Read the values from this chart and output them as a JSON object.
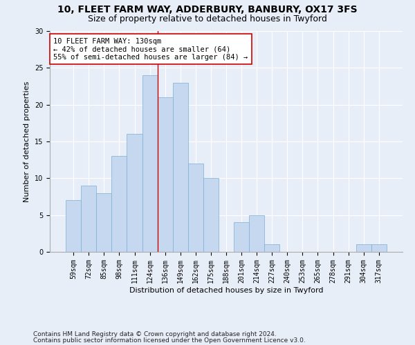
{
  "title1": "10, FLEET FARM WAY, ADDERBURY, BANBURY, OX17 3FS",
  "title2": "Size of property relative to detached houses in Twyford",
  "xlabel": "Distribution of detached houses by size in Twyford",
  "ylabel": "Number of detached properties",
  "bar_color": "#c5d8f0",
  "bar_edge_color": "#7aafd4",
  "categories": [
    "59sqm",
    "72sqm",
    "85sqm",
    "98sqm",
    "111sqm",
    "124sqm",
    "136sqm",
    "149sqm",
    "162sqm",
    "175sqm",
    "188sqm",
    "201sqm",
    "214sqm",
    "227sqm",
    "240sqm",
    "253sqm",
    "265sqm",
    "278sqm",
    "291sqm",
    "304sqm",
    "317sqm"
  ],
  "values": [
    7,
    9,
    8,
    13,
    16,
    24,
    21,
    23,
    12,
    10,
    0,
    4,
    5,
    1,
    0,
    0,
    0,
    0,
    0,
    1,
    1
  ],
  "vline_x": 5.5,
  "vline_color": "#cc0000",
  "annotation_text": "10 FLEET FARM WAY: 130sqm\n← 42% of detached houses are smaller (64)\n55% of semi-detached houses are larger (84) →",
  "annotation_box_color": "#ffffff",
  "annotation_box_edge": "#cc0000",
  "ylim": [
    0,
    30
  ],
  "yticks": [
    0,
    5,
    10,
    15,
    20,
    25,
    30
  ],
  "footnote1": "Contains HM Land Registry data © Crown copyright and database right 2024.",
  "footnote2": "Contains public sector information licensed under the Open Government Licence v3.0.",
  "background_color": "#e8eef8",
  "plot_bg_color": "#e8eef8",
  "grid_color": "#ffffff",
  "title1_fontsize": 10,
  "title2_fontsize": 9,
  "annotation_fontsize": 7.5,
  "footnote_fontsize": 6.5,
  "tick_fontsize": 7,
  "axis_label_fontsize": 8,
  "ylabel_fontsize": 8
}
